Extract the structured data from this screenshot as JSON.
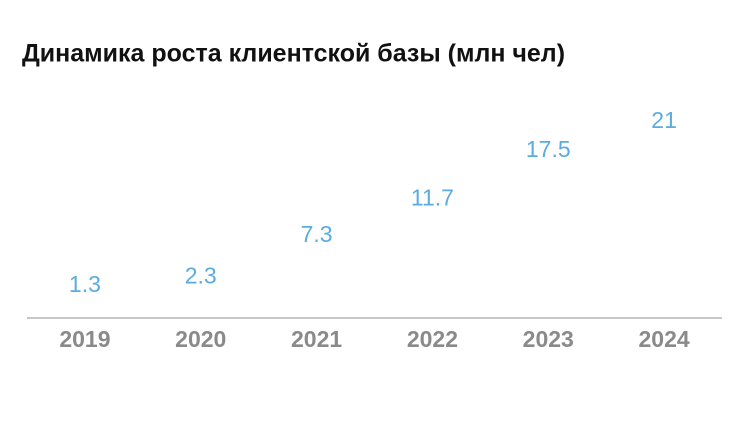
{
  "chart_data": {
    "type": "line",
    "title": "Динамика роста клиентской базы (млн чел)",
    "categories": [
      "2019",
      "2020",
      "2021",
      "2022",
      "2023",
      "2024"
    ],
    "series": [
      {
        "name": null,
        "color": "#5aace0",
        "values": [
          1.3,
          2.3,
          7.3,
          11.7,
          17.5,
          21
        ]
      }
    ],
    "ylim": [
      -4.6,
      21
    ]
  }
}
